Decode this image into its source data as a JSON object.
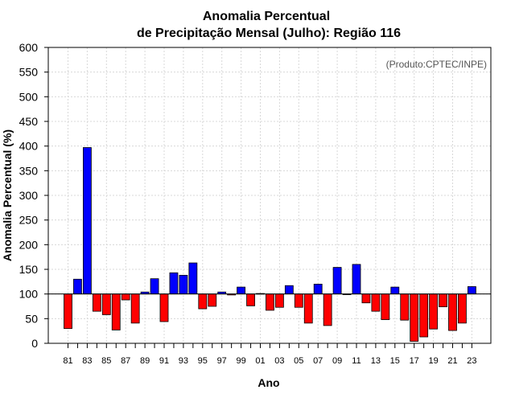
{
  "chart_data": {
    "type": "bar",
    "title_line1": "Anomalia Percentual",
    "title_line2": "de Precipitação Mensal (Julho): Região 116",
    "xlabel": "Ano",
    "ylabel": "Anomalia Percentual (%)",
    "credit": "(Produto:CPTEC/INPE)",
    "ylim": [
      0,
      600
    ],
    "yticks": [
      0,
      50,
      100,
      150,
      200,
      250,
      300,
      350,
      400,
      450,
      500,
      550,
      600
    ],
    "baseline": 100,
    "grid": true,
    "above_color": "#0000ff",
    "below_color": "#ff0000",
    "categories": [
      "81",
      "82",
      "83",
      "84",
      "85",
      "86",
      "87",
      "88",
      "89",
      "90",
      "91",
      "92",
      "93",
      "94",
      "95",
      "96",
      "97",
      "98",
      "99",
      "00",
      "01",
      "02",
      "03",
      "04",
      "05",
      "06",
      "07",
      "08",
      "09",
      "10",
      "11",
      "12",
      "13",
      "14",
      "15",
      "16",
      "17",
      "18",
      "19",
      "20",
      "21",
      "22",
      "23"
    ],
    "tick_labels": [
      "81",
      "83",
      "85",
      "87",
      "89",
      "91",
      "93",
      "95",
      "97",
      "99",
      "01",
      "03",
      "05",
      "07",
      "09",
      "11",
      "13",
      "15",
      "17",
      "19",
      "21",
      "23"
    ],
    "values": [
      30,
      130,
      397,
      65,
      58,
      27,
      88,
      41,
      104,
      131,
      44,
      143,
      138,
      163,
      70,
      75,
      104,
      98,
      114,
      76,
      101,
      67,
      73,
      117,
      73,
      41,
      120,
      36,
      154,
      99,
      160,
      82,
      65,
      48,
      114,
      47,
      4,
      13,
      29,
      74,
      26,
      41,
      115
    ]
  }
}
